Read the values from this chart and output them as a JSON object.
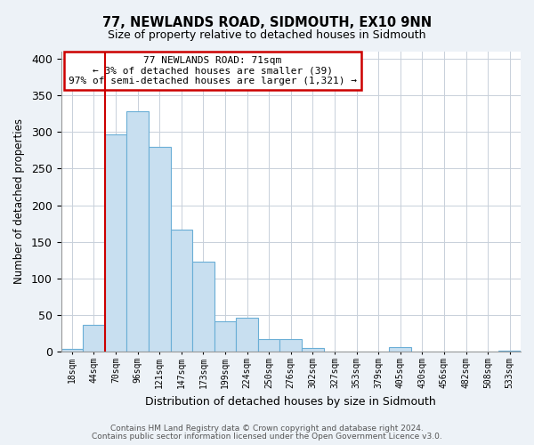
{
  "title": "77, NEWLANDS ROAD, SIDMOUTH, EX10 9NN",
  "subtitle": "Size of property relative to detached houses in Sidmouth",
  "xlabel": "Distribution of detached houses by size in Sidmouth",
  "ylabel": "Number of detached properties",
  "bar_labels": [
    "18sqm",
    "44sqm",
    "70sqm",
    "96sqm",
    "121sqm",
    "147sqm",
    "173sqm",
    "199sqm",
    "224sqm",
    "250sqm",
    "276sqm",
    "302sqm",
    "327sqm",
    "353sqm",
    "379sqm",
    "405sqm",
    "430sqm",
    "456sqm",
    "482sqm",
    "508sqm",
    "533sqm"
  ],
  "bar_values": [
    4,
    37,
    296,
    328,
    280,
    167,
    123,
    42,
    46,
    17,
    18,
    5,
    0,
    1,
    0,
    6,
    0,
    1,
    0,
    0,
    2
  ],
  "bar_color": "#c8dff0",
  "bar_edge_color": "#6aaed6",
  "marker_bar_index": 2,
  "marker_color": "#cc0000",
  "ylim": [
    0,
    410
  ],
  "yticks": [
    0,
    50,
    100,
    150,
    200,
    250,
    300,
    350,
    400
  ],
  "annotation_title": "77 NEWLANDS ROAD: 71sqm",
  "annotation_line1": "← 3% of detached houses are smaller (39)",
  "annotation_line2": "97% of semi-detached houses are larger (1,321) →",
  "footnote1": "Contains HM Land Registry data © Crown copyright and database right 2024.",
  "footnote2": "Contains public sector information licensed under the Open Government Licence v3.0.",
  "bg_color": "#edf2f7",
  "plot_bg_color": "#ffffff",
  "grid_color": "#c8d0da"
}
